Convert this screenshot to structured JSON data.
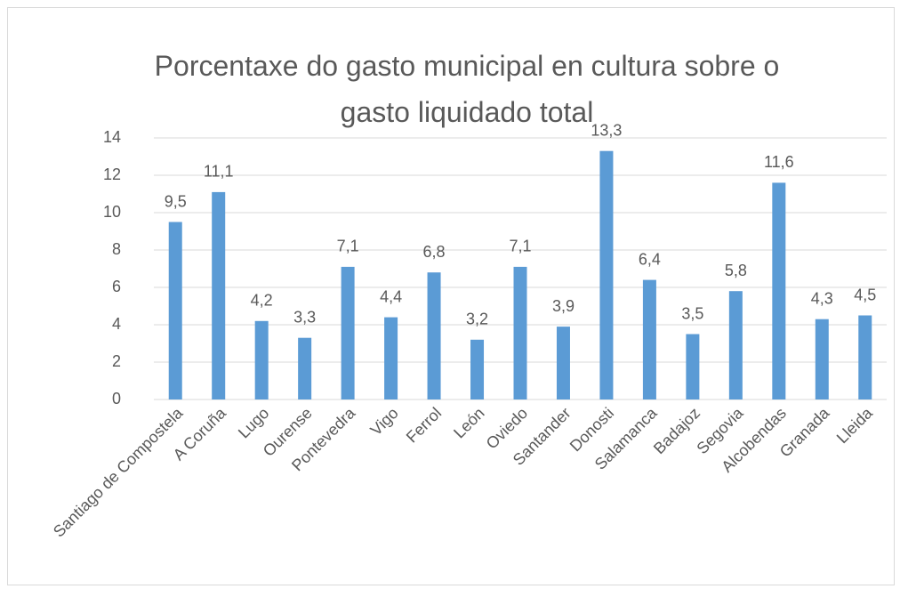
{
  "chart_data": {
    "type": "bar",
    "title": "Porcentaxe do gasto municipal en cultura sobre o gasto liquidado total",
    "categories": [
      "Santiago de Compostela",
      "A Coruña",
      "Lugo",
      "Ourense",
      "Pontevedra",
      "Vigo",
      "Ferrol",
      "León",
      "Oviedo",
      "Santander",
      "Donosti",
      "Salamanca",
      "Badajoz",
      "Segovia",
      "Alcobendas",
      "Granada",
      "Lleida"
    ],
    "values": [
      9.5,
      11.1,
      4.2,
      3.3,
      7.1,
      4.4,
      6.8,
      3.2,
      7.1,
      3.9,
      13.3,
      6.4,
      3.5,
      5.8,
      11.6,
      4.3,
      4.5
    ],
    "value_labels": [
      "9,5",
      "11,1",
      "4,2",
      "3,3",
      "7,1",
      "4,4",
      "6,8",
      "3,2",
      "7,1",
      "3,9",
      "13,3",
      "6,4",
      "3,5",
      "5,8",
      "11,6",
      "4,3",
      "4,5"
    ],
    "color": "#5b9bd5",
    "ylim": [
      0,
      14
    ],
    "yticks": [
      0,
      2,
      4,
      6,
      8,
      10,
      12,
      14
    ],
    "grid": true
  }
}
